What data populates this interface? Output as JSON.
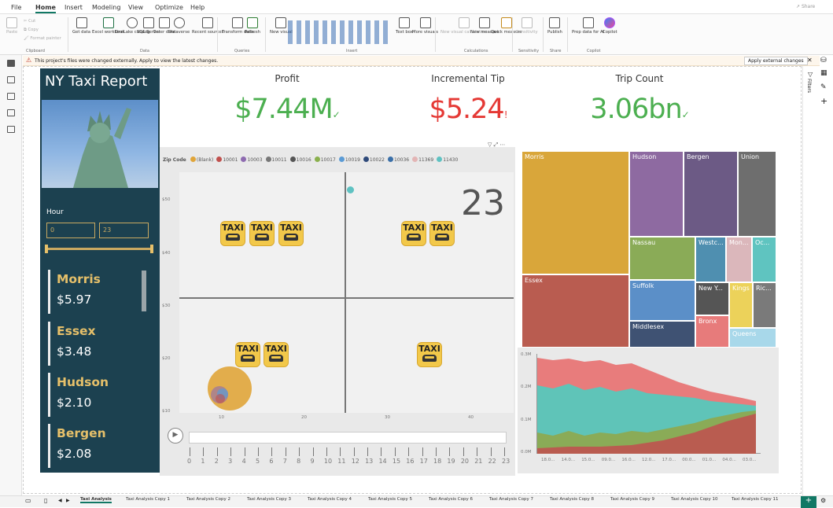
{
  "menu": [
    "File",
    "Home",
    "Insert",
    "Modeling",
    "View",
    "Optimize",
    "Help"
  ],
  "share_label": "Share",
  "ribbon": {
    "clipboard": {
      "paste": "Paste",
      "cut": "Cut",
      "copy": "Copy",
      "format_painter": "Format painter",
      "group": "Clipboard"
    },
    "data": {
      "buttons": [
        "Get data",
        "Excel workbook",
        "OneLake catalog",
        "SQL Server",
        "Enter data",
        "Dataverse",
        "Recent sources"
      ],
      "group": "Data"
    },
    "queries": {
      "buttons": [
        "Transform data",
        "Refresh"
      ],
      "group": "Queries"
    },
    "insert": {
      "buttons": [
        "New visual",
        "Text box",
        "More visuals"
      ],
      "group": "Insert"
    },
    "calculations": {
      "buttons": [
        "New visual calculation",
        "New measure",
        "Quick measure"
      ],
      "group": "Calculations"
    },
    "sensitivity": {
      "buttons": [
        "Sensitivity"
      ],
      "group": "Sensitivity"
    },
    "share": {
      "buttons": [
        "Publish"
      ],
      "group": "Share"
    },
    "copilot": {
      "buttons": [
        "Prep data for AI",
        "Copilot"
      ],
      "group": "Copilot"
    }
  },
  "notice": {
    "text": "This project's files were changed externally. Apply to view the latest changes.",
    "button": "Apply external changes"
  },
  "filters_label": "Filters",
  "report": {
    "title": "NY Taxi Report",
    "hour_label": "Hour",
    "hour_min": "0",
    "hour_max": "23",
    "slider_fraction": [
      0,
      1
    ],
    "cards": [
      {
        "name": "Morris",
        "value": "$5.97"
      },
      {
        "name": "Essex",
        "value": "$3.48"
      },
      {
        "name": "Hudson",
        "value": "$2.10"
      },
      {
        "name": "Bergen",
        "value": "$2.08"
      }
    ],
    "kpis": [
      {
        "title": "Profit",
        "value": "$7.44M",
        "color": "#4caf50"
      },
      {
        "title": "Incremental Tip",
        "value": "$5.24",
        "color": "#e53935"
      },
      {
        "title": "Trip Count",
        "value": "3.06bn",
        "color": "#4caf50"
      }
    ]
  },
  "scatter": {
    "legend_title": "Zip Code",
    "legend": [
      {
        "label": "(Blank)",
        "color": "#e0a53a"
      },
      {
        "label": "10001",
        "color": "#c0504d"
      },
      {
        "label": "10003",
        "color": "#8e6bb0"
      },
      {
        "label": "10011",
        "color": "#777777"
      },
      {
        "label": "10016",
        "color": "#555555"
      },
      {
        "label": "10017",
        "color": "#8ab04d"
      },
      {
        "label": "10019",
        "color": "#5b9bd5"
      },
      {
        "label": "10022",
        "color": "#2f4a7a"
      },
      {
        "label": "10036",
        "color": "#3a6fa8"
      },
      {
        "label": "11369",
        "color": "#e3b5b5"
      },
      {
        "label": "11430",
        "color": "#5fc2c2"
      }
    ],
    "frame_label": "23",
    "taxi_text": "TAXI",
    "y_ticks": [
      "$50",
      "$40",
      "$30",
      "$20",
      "$10"
    ],
    "x_ticks": [
      "10",
      "20",
      "30",
      "40"
    ],
    "play_ticks": [
      "0",
      "1",
      "2",
      "3",
      "4",
      "5",
      "6",
      "7",
      "8",
      "9",
      "10",
      "11",
      "12",
      "13",
      "14",
      "15",
      "16",
      "17",
      "18",
      "19",
      "20",
      "21",
      "22",
      "23"
    ]
  },
  "treemap": [
    {
      "label": "Morris",
      "color": "#d9a63a"
    },
    {
      "label": "Hudson",
      "color": "#8e6aa1"
    },
    {
      "label": "Bergen",
      "color": "#6c5a85"
    },
    {
      "label": "Union",
      "color": "#6e6e6e"
    },
    {
      "label": "Essex",
      "color": "#b95c50"
    },
    {
      "label": "Nassau",
      "color": "#8aab57"
    },
    {
      "label": "Westc...",
      "color": "#4f8fb0"
    },
    {
      "label": "Mon...",
      "color": "#dbb7bb"
    },
    {
      "label": "Oc...",
      "color": "#5fc4c0"
    },
    {
      "label": "Suffolk",
      "color": "#5b8fc8"
    },
    {
      "label": "New Y...",
      "color": "#555555"
    },
    {
      "label": "Kings",
      "color": "#ecd25a"
    },
    {
      "label": "Ric...",
      "color": "#7a7a7a"
    },
    {
      "label": "Middlesex",
      "color": "#3f5273"
    },
    {
      "label": "Bronx",
      "color": "#e77b7b"
    },
    {
      "label": "Queens",
      "color": "#a8d8ea"
    }
  ],
  "area": {
    "y_ticks": [
      "0.3M",
      "0.2M",
      "0.1M",
      "0.0M"
    ],
    "x_ticks": [
      "18.0...",
      "14.0...",
      "15.0...",
      "09.0...",
      "16.0...",
      "12.0...",
      "17.0...",
      "00.0...",
      "01.0...",
      "04.0...",
      "03.0..."
    ],
    "series_colors": [
      "#e87c7c",
      "#5fc4b8",
      "#8aab57",
      "#b95c50"
    ]
  },
  "tabs": [
    "Taxi Analysis",
    "Taxi Analysis Copy 1",
    "Taxi Analysis Copy 2",
    "Taxi Analysis Copy 3",
    "Taxi Analysis Copy 4",
    "Taxi Analysis Copy 5",
    "Taxi Analysis Copy 6",
    "Taxi Analysis Copy 7",
    "Taxi Analysis Copy 8",
    "Taxi Analysis Copy 9",
    "Taxi Analysis Copy 10",
    "Taxi Analysis Copy 11"
  ]
}
